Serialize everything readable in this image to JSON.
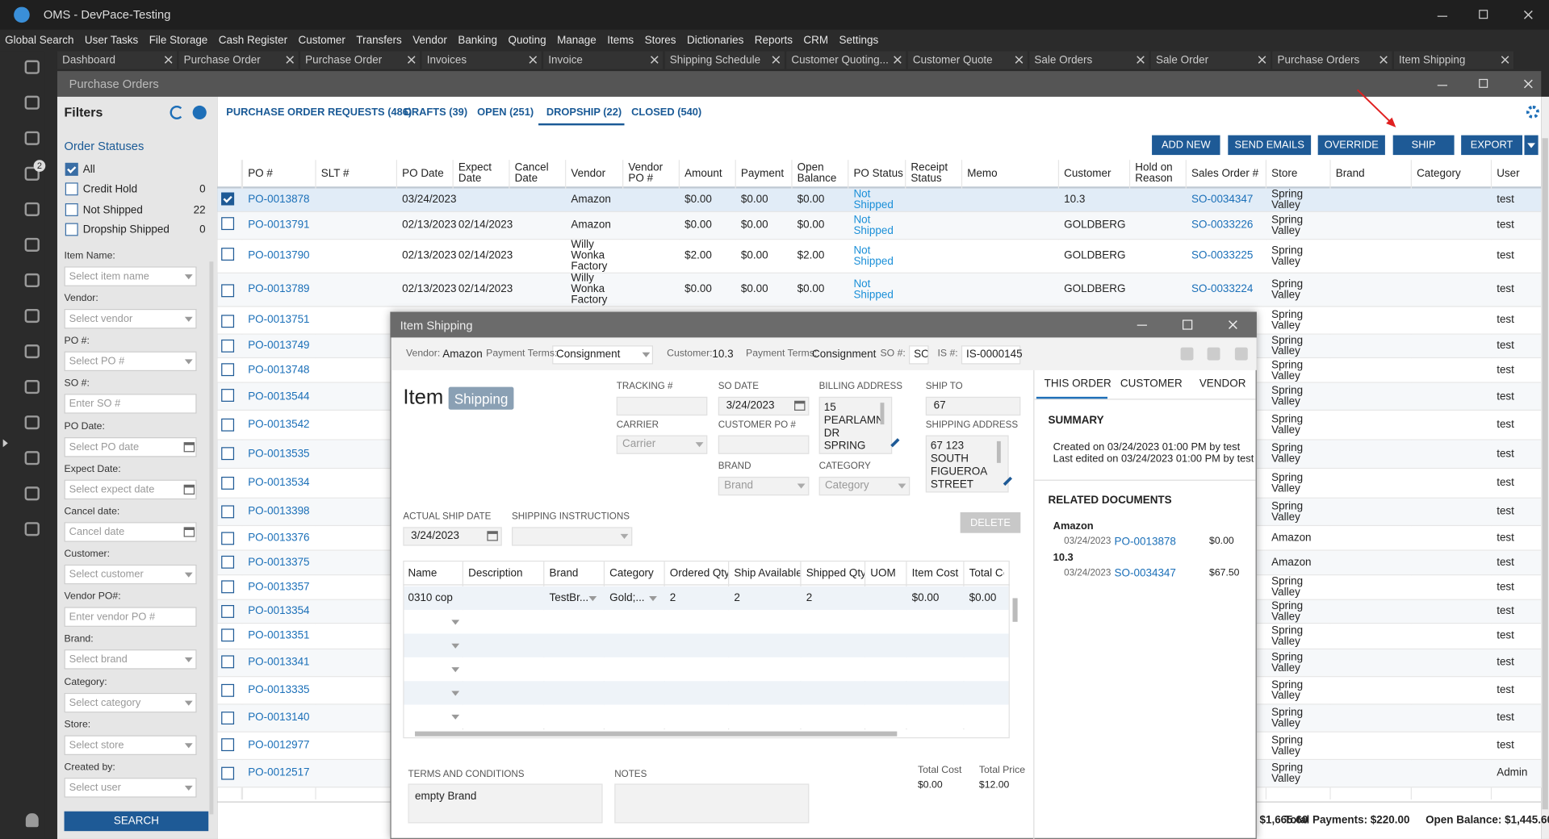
{
  "app": {
    "title": "OMS - DevPace-Testing",
    "menu": [
      "Global Search",
      "User Tasks",
      "File Storage",
      "Cash Register",
      "Customer",
      "Transfers",
      "Vendor",
      "Banking",
      "Quoting",
      "Manage",
      "Items",
      "Stores",
      "Dictionaries",
      "Reports",
      "CRM",
      "Settings"
    ],
    "tabs": [
      "Dashboard",
      "Purchase Order",
      "Purchase Order",
      "Invoices",
      "Invoice",
      "Shipping Schedule",
      "Customer Quoting...",
      "Customer Quote",
      "Sale Orders",
      "Sale Order",
      "Purchase Orders",
      "Item Shipping"
    ],
    "task_badge": "2"
  },
  "window": {
    "title": "Purchase Orders"
  },
  "filters": {
    "title": "Filters",
    "section": "Order Statuses",
    "statuses": [
      {
        "label": "All",
        "checked": true
      },
      {
        "label": "Credit Hold",
        "count": 0,
        "checked": false
      },
      {
        "label": "Not Shipped",
        "count": 22,
        "checked": false
      },
      {
        "label": "Dropship Shipped",
        "count": 0,
        "checked": false
      }
    ],
    "fields": [
      {
        "label": "Item Name:",
        "placeholder": "Select item name",
        "kind": "select"
      },
      {
        "label": "Vendor:",
        "placeholder": "Select vendor",
        "kind": "select"
      },
      {
        "label": "PO #:",
        "placeholder": "Select PO #",
        "kind": "select"
      },
      {
        "label": "SO #:",
        "placeholder": "Enter SO #",
        "kind": "text"
      },
      {
        "label": "PO Date:",
        "placeholder": "Select PO date",
        "kind": "date"
      },
      {
        "label": "Expect Date:",
        "placeholder": "Select expect date",
        "kind": "date"
      },
      {
        "label": "Cancel date:",
        "placeholder": "Cancel date",
        "kind": "date"
      },
      {
        "label": "Customer:",
        "placeholder": "Select customer",
        "kind": "select"
      },
      {
        "label": "Vendor PO#:",
        "placeholder": "Enter vendor PO #",
        "kind": "text"
      },
      {
        "label": "Brand:",
        "placeholder": "Select brand",
        "kind": "select"
      },
      {
        "label": "Category:",
        "placeholder": "Select category",
        "kind": "select"
      },
      {
        "label": "Store:",
        "placeholder": "Select store",
        "kind": "select"
      },
      {
        "label": "Created by:",
        "placeholder": "Select user",
        "kind": "select"
      }
    ],
    "search": "SEARCH"
  },
  "orders": {
    "tabs": [
      "PURCHASE ORDER REQUESTS (486)",
      "DRAFTS (39)",
      "OPEN (251)",
      "DROPSHIP (22)",
      "CLOSED (540)"
    ],
    "active_tab": 3,
    "buttons": [
      "ADD NEW",
      "SEND EMAILS",
      "OVERRIDE",
      "SHIP",
      "EXPORT"
    ],
    "columns": [
      "PO #",
      "SLT #",
      "PO Date",
      "Expect Date",
      "Cancel Date",
      "Vendor",
      "Vendor PO #",
      "Amount",
      "Payment",
      "Open Balance",
      "PO Status",
      "Receipt Status",
      "Memo",
      "Customer",
      "Hold on Reason",
      "Sales Order #",
      "Store",
      "Brand",
      "Category",
      "User"
    ],
    "selected_row": 0,
    "rows": [
      [
        "PO-0013878",
        null,
        "03/24/2023",
        null,
        null,
        "Amazon",
        null,
        "$0.00",
        "$0.00",
        "$0.00",
        "Not Shipped",
        null,
        null,
        "10.3",
        null,
        "SO-0034347",
        "Spring Valley",
        null,
        null,
        "test"
      ],
      [
        "PO-0013791",
        null,
        "02/13/2023",
        "02/14/2023",
        null,
        "Amazon",
        null,
        "$0.00",
        "$0.00",
        "$0.00",
        "Not Shipped",
        null,
        null,
        "GOLDBERG",
        null,
        "SO-0033226",
        "Spring Valley",
        null,
        null,
        "test"
      ],
      [
        "PO-0013790",
        null,
        "02/13/2023",
        "02/14/2023",
        null,
        "Willy Wonka Factory",
        null,
        "$2.00",
        "$0.00",
        "$2.00",
        "Not Shipped",
        null,
        null,
        "GOLDBERG",
        null,
        "SO-0033225",
        "Spring Valley",
        null,
        null,
        "test"
      ],
      [
        "PO-0013789",
        null,
        "02/13/2023",
        "02/14/2023",
        null,
        "Willy Wonka Factory",
        null,
        "$0.00",
        "$0.00",
        "$0.00",
        "Not Shipped",
        null,
        null,
        "GOLDBERG",
        null,
        "SO-0033224",
        "Spring Valley",
        null,
        null,
        "test"
      ],
      [
        "PO-0013751",
        null,
        null,
        null,
        null,
        null,
        null,
        null,
        null,
        null,
        null,
        null,
        null,
        null,
        null,
        null,
        "Spring Valley",
        null,
        null,
        "test"
      ],
      [
        "PO-0013749",
        null,
        null,
        null,
        null,
        null,
        null,
        null,
        null,
        null,
        null,
        null,
        null,
        null,
        null,
        null,
        "Spring Valley",
        null,
        null,
        "test"
      ],
      [
        "PO-0013748",
        null,
        null,
        null,
        null,
        null,
        null,
        null,
        null,
        null,
        null,
        null,
        null,
        null,
        null,
        null,
        "Spring Valley",
        null,
        null,
        "test"
      ],
      [
        "PO-0013544",
        null,
        null,
        null,
        null,
        null,
        null,
        null,
        null,
        null,
        null,
        null,
        null,
        null,
        null,
        null,
        "Spring Valley",
        null,
        null,
        "test"
      ],
      [
        "PO-0013542",
        null,
        null,
        null,
        null,
        null,
        null,
        null,
        null,
        null,
        null,
        null,
        null,
        null,
        null,
        null,
        "Spring Valley",
        null,
        null,
        "test"
      ],
      [
        "PO-0013535",
        null,
        null,
        null,
        null,
        null,
        null,
        null,
        null,
        null,
        null,
        null,
        null,
        null,
        null,
        null,
        "Spring Valley",
        null,
        null,
        "test"
      ],
      [
        "PO-0013534",
        null,
        null,
        null,
        null,
        null,
        null,
        null,
        null,
        null,
        null,
        null,
        null,
        null,
        null,
        null,
        "Spring Valley",
        null,
        null,
        "test"
      ],
      [
        "PO-0013398",
        null,
        null,
        null,
        null,
        null,
        null,
        null,
        null,
        null,
        null,
        null,
        null,
        null,
        null,
        null,
        "Spring Valley",
        null,
        null,
        "test"
      ],
      [
        "PO-0013376",
        null,
        null,
        null,
        null,
        null,
        null,
        null,
        null,
        null,
        null,
        null,
        null,
        null,
        null,
        null,
        "Amazon",
        null,
        null,
        "test"
      ],
      [
        "PO-0013375",
        null,
        null,
        null,
        null,
        null,
        null,
        null,
        null,
        null,
        null,
        null,
        null,
        null,
        null,
        null,
        "Amazon",
        null,
        null,
        "test"
      ],
      [
        "PO-0013357",
        null,
        null,
        null,
        null,
        null,
        null,
        null,
        null,
        null,
        null,
        null,
        null,
        null,
        null,
        null,
        "Spring Valley",
        null,
        null,
        "test"
      ],
      [
        "PO-0013354",
        null,
        null,
        null,
        null,
        null,
        null,
        null,
        null,
        null,
        null,
        null,
        null,
        null,
        null,
        null,
        "Spring Valley",
        null,
        null,
        "test"
      ],
      [
        "PO-0013351",
        null,
        null,
        null,
        null,
        null,
        null,
        null,
        null,
        null,
        null,
        null,
        null,
        null,
        null,
        null,
        "Spring Valley",
        null,
        null,
        "test"
      ],
      [
        "PO-0013341",
        null,
        null,
        null,
        null,
        null,
        null,
        null,
        null,
        null,
        null,
        null,
        null,
        null,
        null,
        null,
        "Spring Valley",
        null,
        null,
        "test"
      ],
      [
        "PO-0013335",
        null,
        null,
        null,
        null,
        null,
        null,
        null,
        null,
        null,
        null,
        null,
        null,
        null,
        null,
        null,
        "Spring Valley",
        null,
        null,
        "test"
      ],
      [
        "PO-0013140",
        null,
        null,
        null,
        null,
        null,
        null,
        null,
        null,
        null,
        null,
        null,
        null,
        null,
        null,
        null,
        "Spring Valley",
        null,
        null,
        "test"
      ],
      [
        "PO-0012977",
        null,
        null,
        null,
        null,
        null,
        null,
        null,
        null,
        null,
        null,
        null,
        null,
        null,
        null,
        null,
        "Spring Valley",
        null,
        null,
        "test"
      ],
      [
        "PO-0012517",
        null,
        null,
        null,
        null,
        null,
        null,
        null,
        null,
        null,
        null,
        null,
        null,
        null,
        null,
        null,
        "Spring Valley",
        null,
        null,
        "Admin"
      ]
    ],
    "footer": [
      "$1,665.60",
      "Total Payments: $220.00",
      "Open Balance: $1,445.60"
    ]
  },
  "dialog": {
    "title": "Item Shipping",
    "header": [
      {
        "label": "Vendor:",
        "value": "Amazon"
      },
      {
        "label": "Payment Terms:",
        "value": "Consignment"
      },
      {
        "label": "Customer:",
        "value": "10.3"
      },
      {
        "label": "Payment Terms:",
        "value": "Consignment"
      },
      {
        "label": "SO #:",
        "value": "SO"
      },
      {
        "label": "IS #:",
        "value": "IS-0000145"
      }
    ],
    "heading": "Item",
    "badge": "Shipping",
    "fields": [
      {
        "label": "TRACKING #"
      },
      {
        "label": "SO DATE",
        "value": "3/24/2023"
      },
      {
        "label": "BILLING ADDRESS",
        "value": "15 PEARLAMN DR SPRING"
      },
      {
        "label": "SHIP TO",
        "value": "67"
      },
      {
        "label": "CARRIER",
        "placeholder": "Carrier"
      },
      {
        "label": "CUSTOMER PO #"
      },
      {
        "label": "SHIPPING ADDRESS",
        "value": "67 123 SOUTH FIGUEROA STREET"
      },
      {
        "label": "BRAND",
        "placeholder": "Brand"
      },
      {
        "label": "CATEGORY",
        "placeholder": "Category"
      },
      {
        "label": "ACTUAL SHIP DATE",
        "value": "3/24/2023"
      },
      {
        "label": "SHIPPING INSTRUCTIONS"
      }
    ],
    "delete": "DELETE",
    "grid": {
      "columns": [
        "Name",
        "Description",
        "Brand",
        "Category",
        "Ordered Qty",
        "Ship Available",
        "Shipped Qty",
        "UOM",
        "Item Cost",
        "Total Cost"
      ],
      "rows": [
        [
          "0310 cop",
          null,
          "TestBr...",
          "Gold;...",
          2,
          2,
          2,
          null,
          "$0.00",
          "$0.00"
        ]
      ]
    },
    "terms": {
      "label": "TERMS AND CONDITIONS",
      "value": "empty Brand"
    },
    "notes": {
      "label": "NOTES"
    },
    "totals": [
      {
        "label": "Total Cost",
        "value": "$0.00"
      },
      {
        "label": "Total Price",
        "value": "$12.00"
      }
    ],
    "side": {
      "tabs": [
        "THIS ORDER",
        "CUSTOMER",
        "VENDOR"
      ],
      "active_tab": 0,
      "summary_title": "SUMMARY",
      "summary": [
        "Created on 03/24/2023 01:00 PM by test",
        "Last edited on 03/24/2023 01:00 PM by test"
      ],
      "related_title": "RELATED DOCUMENTS",
      "related": [
        {
          "group": "Amazon",
          "date": "03/24/2023",
          "doc": "PO-0013878",
          "amount": "$0.00"
        },
        {
          "group": "10.3",
          "date": "03/24/2023",
          "doc": "SO-0034347",
          "amount": "$67.50"
        }
      ]
    }
  }
}
